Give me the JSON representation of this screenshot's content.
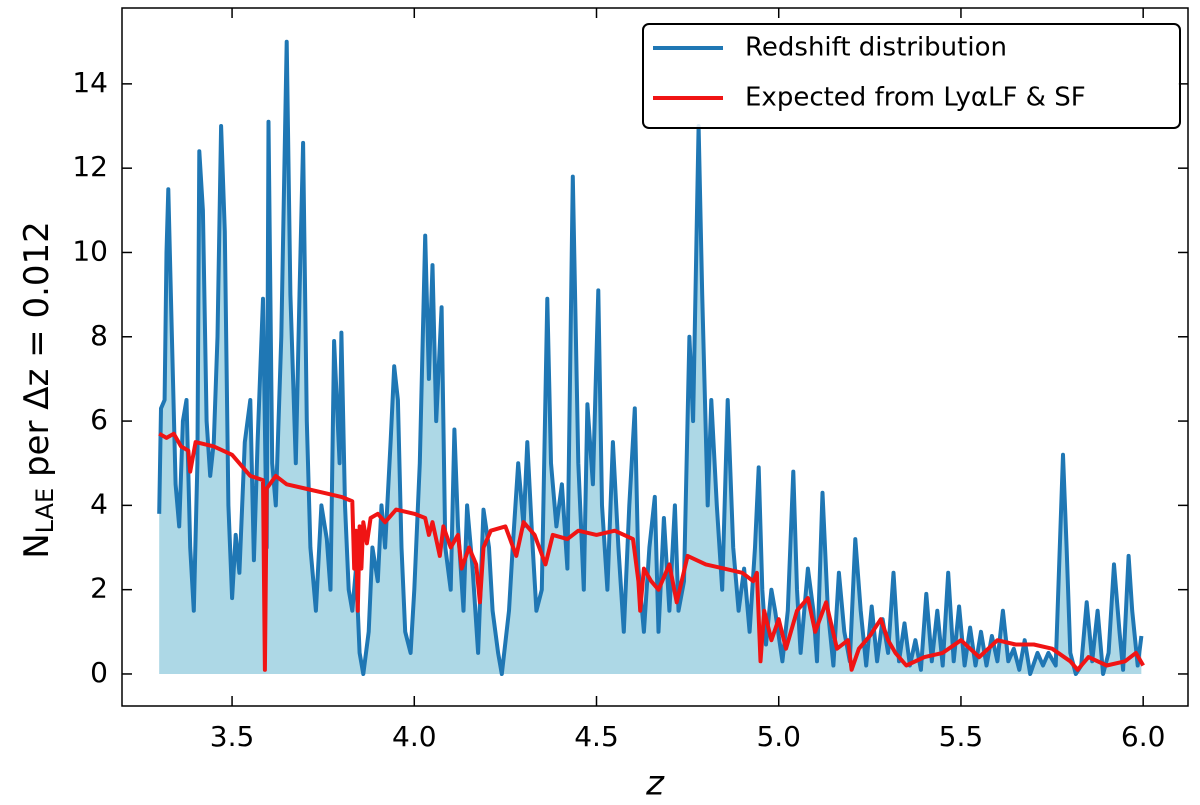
{
  "chart_data": {
    "type": "line",
    "xlabel": "z",
    "ylabel": {
      "main": "N",
      "sub": "LAE",
      "rest": " per Δz = 0.012"
    },
    "xlim": [
      3.198,
      6.123
    ],
    "ylim": [
      -0.76,
      15.8
    ],
    "xticks": [
      {
        "value": 3.5,
        "label": "3.5"
      },
      {
        "value": 4,
        "label": "4.0"
      },
      {
        "value": 4.5,
        "label": "4.5"
      },
      {
        "value": 5,
        "label": "5.0"
      },
      {
        "value": 5.5,
        "label": "5.5"
      },
      {
        "value": 6,
        "label": "6.0"
      }
    ],
    "yticks": [
      0,
      2,
      4,
      6,
      8,
      10,
      12,
      14
    ],
    "legend": "upper right",
    "series": [
      {
        "name": "Redshift distribution",
        "color": "#1f77b4",
        "fill": "#add8e6",
        "x": [
          3.3,
          3.305,
          3.315,
          3.32,
          3.325,
          3.335,
          3.345,
          3.355,
          3.365,
          3.375,
          3.385,
          3.395,
          3.405,
          3.41,
          3.42,
          3.43,
          3.44,
          3.45,
          3.46,
          3.47,
          3.48,
          3.49,
          3.5,
          3.51,
          3.52,
          3.535,
          3.55,
          3.56,
          3.57,
          3.585,
          3.595,
          3.6,
          3.61,
          3.62,
          3.635,
          3.65,
          3.66,
          3.675,
          3.685,
          3.695,
          3.705,
          3.715,
          3.73,
          3.745,
          3.76,
          3.77,
          3.78,
          3.795,
          3.8,
          3.81,
          3.82,
          3.83,
          3.84,
          3.85,
          3.86,
          3.875,
          3.885,
          3.9,
          3.91,
          3.92,
          3.935,
          3.945,
          3.955,
          3.965,
          3.975,
          3.99,
          4.0,
          4.015,
          4.03,
          4.04,
          4.05,
          4.06,
          4.075,
          4.085,
          4.1,
          4.11,
          4.12,
          4.135,
          4.145,
          4.16,
          4.175,
          4.19,
          4.205,
          4.215,
          4.23,
          4.24,
          4.26,
          4.27,
          4.285,
          4.3,
          4.31,
          4.325,
          4.335,
          4.35,
          4.365,
          4.375,
          4.39,
          4.405,
          4.42,
          4.435,
          4.45,
          4.465,
          4.475,
          4.49,
          4.505,
          4.515,
          4.53,
          4.545,
          4.56,
          4.575,
          4.59,
          4.605,
          4.615,
          4.63,
          4.645,
          4.66,
          4.67,
          4.685,
          4.7,
          4.715,
          4.725,
          4.74,
          4.755,
          4.765,
          4.78,
          4.79,
          4.805,
          4.815,
          4.83,
          4.845,
          4.86,
          4.875,
          4.89,
          4.905,
          4.92,
          4.935,
          4.945,
          4.955,
          4.965,
          4.98,
          4.99,
          5.01,
          5.025,
          5.04,
          5.05,
          5.06,
          5.08,
          5.095,
          5.105,
          5.12,
          5.135,
          5.15,
          5.165,
          5.18,
          5.195,
          5.21,
          5.225,
          5.24,
          5.255,
          5.27,
          5.285,
          5.3,
          5.315,
          5.33,
          5.345,
          5.36,
          5.375,
          5.39,
          5.405,
          5.42,
          5.435,
          5.45,
          5.465,
          5.48,
          5.495,
          5.51,
          5.525,
          5.54,
          5.555,
          5.57,
          5.585,
          5.6,
          5.615,
          5.63,
          5.645,
          5.66,
          5.675,
          5.69,
          5.71,
          5.725,
          5.74,
          5.76,
          5.78,
          5.79,
          5.8,
          5.815,
          5.83,
          5.845,
          5.86,
          5.875,
          5.89,
          5.905,
          5.92,
          5.935,
          5.945,
          5.96,
          5.97,
          5.985,
          5.995
        ],
        "values": [
          3.8,
          6.3,
          6.5,
          10,
          11.5,
          8,
          4.5,
          3.5,
          6,
          6.5,
          3,
          1.5,
          5,
          12.4,
          11,
          6,
          4.7,
          5.5,
          8,
          13,
          10.5,
          4,
          1.8,
          3.3,
          2.4,
          5.5,
          6.5,
          2.7,
          5.5,
          8.9,
          3,
          13.1,
          5,
          4,
          8,
          15,
          9,
          5,
          9,
          12.6,
          6,
          3,
          1.5,
          4,
          3.2,
          2,
          7.9,
          5,
          8.1,
          4,
          2,
          1.5,
          2.5,
          0.5,
          0,
          1,
          3,
          2.2,
          4,
          3,
          5.5,
          7.3,
          6.5,
          3,
          1,
          0.5,
          2,
          5,
          10.4,
          7,
          9.7,
          6,
          8.7,
          3,
          2,
          5.8,
          3.5,
          1.5,
          4,
          2.5,
          0.5,
          3.9,
          3,
          1.5,
          0.5,
          0,
          1.5,
          3,
          5,
          3.5,
          5.5,
          3,
          1.5,
          2,
          8.9,
          5,
          3.5,
          4.5,
          2.5,
          11.8,
          5,
          2,
          6.4,
          4.5,
          9.1,
          4,
          2,
          5.5,
          3,
          1,
          4,
          6.3,
          2.5,
          1,
          3,
          4.2,
          1,
          3.7,
          1.5,
          4,
          1.5,
          2.2,
          8,
          6,
          13,
          9,
          4,
          6.5,
          4,
          2,
          6.5,
          3,
          1.5,
          2.5,
          1,
          3,
          4.9,
          2,
          0.7,
          2,
          1.5,
          0.3,
          1.5,
          4.8,
          2,
          0.5,
          2.5,
          1.5,
          0.3,
          4.3,
          1.5,
          0.2,
          2.4,
          1,
          0.3,
          3.2,
          1.5,
          0.2,
          1.6,
          0.3,
          1.3,
          0.5,
          2.4,
          0.3,
          1.2,
          0.2,
          0.8,
          0.1,
          1.9,
          0.3,
          1.5,
          0.2,
          2.4,
          0.3,
          1.6,
          0.2,
          1.1,
          0.2,
          1,
          0.2,
          0.9,
          0.3,
          1.5,
          0.3,
          0.6,
          0.1,
          0.8,
          0,
          0.5,
          0.2,
          0.5,
          0.2,
          5.2,
          3,
          0.5,
          0,
          0.2,
          1.7,
          0.3,
          1.5,
          0,
          0.5,
          2.6,
          1,
          0.1,
          2.8,
          1.5,
          0.2,
          0.9
        ]
      },
      {
        "name": "Expected from LyαLF & SF",
        "color": "#f01414",
        "x": [
          3.3,
          3.32,
          3.34,
          3.36,
          3.38,
          3.385,
          3.4,
          3.45,
          3.5,
          3.55,
          3.585,
          3.59,
          3.595,
          3.62,
          3.65,
          3.7,
          3.75,
          3.8,
          3.83,
          3.835,
          3.84,
          3.845,
          3.85,
          3.855,
          3.86,
          3.87,
          3.88,
          3.9,
          3.92,
          3.95,
          4.0,
          4.03,
          4.04,
          4.05,
          4.07,
          4.08,
          4.1,
          4.12,
          4.13,
          4.15,
          4.17,
          4.18,
          4.19,
          4.21,
          4.25,
          4.28,
          4.3,
          4.33,
          4.36,
          4.38,
          4.42,
          4.45,
          4.5,
          4.55,
          4.6,
          4.615,
          4.62,
          4.63,
          4.65,
          4.67,
          4.7,
          4.72,
          4.75,
          4.8,
          4.85,
          4.9,
          4.93,
          4.94,
          4.95,
          4.96,
          4.98,
          5.0,
          5.02,
          5.05,
          5.08,
          5.1,
          5.13,
          5.16,
          5.19,
          5.2,
          5.22,
          5.25,
          5.28,
          5.3,
          5.32,
          5.35,
          5.4,
          5.45,
          5.5,
          5.55,
          5.6,
          5.65,
          5.7,
          5.75,
          5.8,
          5.82,
          5.85,
          5.9,
          5.95,
          5.98,
          6.0
        ],
        "values": [
          5.7,
          5.6,
          5.7,
          5.4,
          5.3,
          4.8,
          5.5,
          5.4,
          5.2,
          4.7,
          4.6,
          0.1,
          4.4,
          4.7,
          4.5,
          4.4,
          4.3,
          4.2,
          4.1,
          2.5,
          3.4,
          1.5,
          3.5,
          2.5,
          3.6,
          3.1,
          3.7,
          3.8,
          3.6,
          3.9,
          3.8,
          3.7,
          3.3,
          3.6,
          2.8,
          3.5,
          3.0,
          3.3,
          2.5,
          3.0,
          2.6,
          1.7,
          3.0,
          3.4,
          3.5,
          2.8,
          3.6,
          3.3,
          2.6,
          3.3,
          3.2,
          3.4,
          3.3,
          3.4,
          3.2,
          2.2,
          1.5,
          2.5,
          2.2,
          2.0,
          2.6,
          1.7,
          2.8,
          2.6,
          2.5,
          2.4,
          2.2,
          2.4,
          0.3,
          1.5,
          0.8,
          1.3,
          0.6,
          1.5,
          1.8,
          1.0,
          1.7,
          0.6,
          0.8,
          0.1,
          0.6,
          0.9,
          1.3,
          0.8,
          0.5,
          0.2,
          0.4,
          0.5,
          0.8,
          0.4,
          0.8,
          0.7,
          0.7,
          0.6,
          0.3,
          0.1,
          0.4,
          0.2,
          0.3,
          0.5,
          0.2
        ]
      }
    ]
  }
}
